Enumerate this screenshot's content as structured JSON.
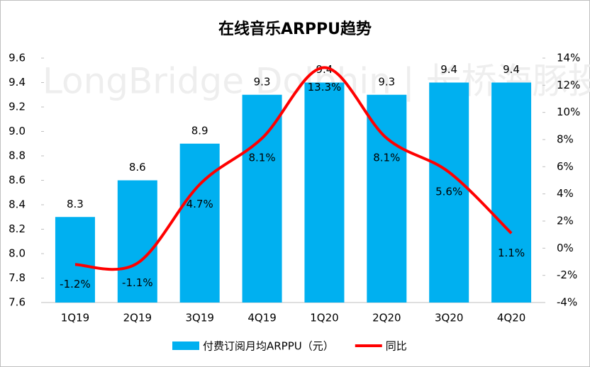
{
  "chart_data": {
    "type": "bar",
    "title": "在线音乐ARPPU趋势",
    "watermark": "LongBridge Dolphin | 长桥海豚投研",
    "categories": [
      "1Q19",
      "2Q19",
      "3Q19",
      "4Q19",
      "1Q20",
      "2Q20",
      "3Q20",
      "4Q20"
    ],
    "series": [
      {
        "name": "付费订阅月均ARPPU（元）",
        "type": "bar",
        "color": "#00b0f0",
        "values": [
          8.3,
          8.6,
          8.9,
          9.3,
          9.4,
          9.3,
          9.4,
          9.4
        ]
      },
      {
        "name": "同比",
        "type": "line",
        "axis": "y2",
        "color": "#ff0000",
        "values": [
          -1.2,
          -1.1,
          4.7,
          8.1,
          13.3,
          8.1,
          5.6,
          1.1
        ],
        "value_labels": [
          "-1.2%",
          "-1.1%",
          "4.7%",
          "8.1%",
          "13.3%",
          "8.1%",
          "5.6%",
          "1.1%"
        ]
      }
    ],
    "ylim": [
      7.6,
      9.6
    ],
    "yticks": [
      7.6,
      7.8,
      {
        "value": 8,
        "label": "8.0"
      },
      8.2,
      8.4,
      8.6,
      8.8,
      {
        "value": 9,
        "label": "9.0"
      },
      9.2,
      9.4,
      9.6
    ],
    "y2lim": [
      -4,
      14
    ],
    "y2ticks": [
      {
        "value": -4,
        "label": "-4%"
      },
      {
        "value": -2,
        "label": "-2%"
      },
      {
        "value": 0,
        "label": "0%"
      },
      {
        "value": 2,
        "label": "2%"
      },
      {
        "value": 4,
        "label": "4%"
      },
      {
        "value": 6,
        "label": "6%"
      },
      {
        "value": 8,
        "label": "8%"
      },
      {
        "value": 10,
        "label": "10%"
      },
      {
        "value": 12,
        "label": "12%"
      },
      {
        "value": 14,
        "label": "14%"
      }
    ],
    "grid": false,
    "legend": "bottom"
  }
}
